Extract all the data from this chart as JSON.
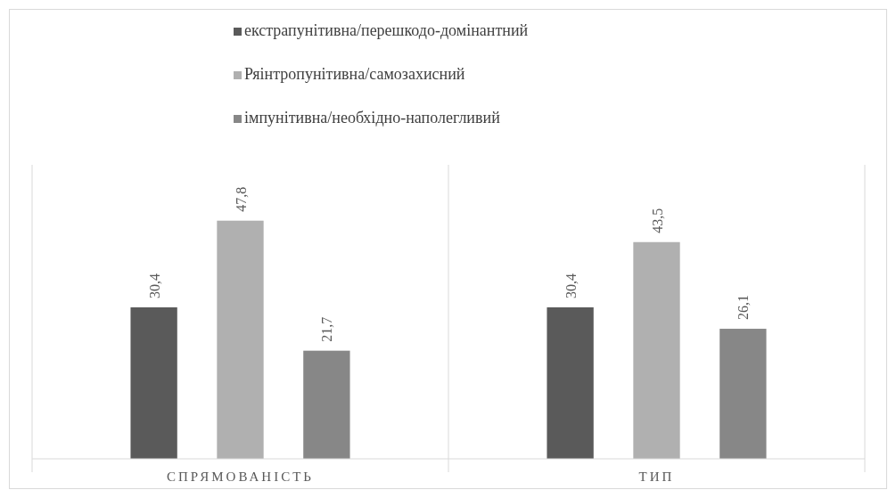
{
  "chart_data": {
    "type": "bar",
    "categories": [
      "СПРЯМОВАНІСТЬ",
      "ТИП"
    ],
    "series": [
      {
        "name": "екстрапунітивна/перешкодо-домінантний",
        "color": "#5a5a5a",
        "values": [
          30.4,
          30.4
        ],
        "value_labels": [
          "30,4",
          "30,4"
        ]
      },
      {
        "name": "Ряінтропунітивна/самозахисний",
        "color": "#b0b0b0",
        "values": [
          47.8,
          43.5
        ],
        "value_labels": [
          "47,8",
          "43,5"
        ]
      },
      {
        "name": "імпунітивна/необхідно-наполегливий",
        "color": "#878787",
        "values": [
          21.7,
          26.1
        ],
        "value_labels": [
          "21,7",
          "26,1"
        ]
      }
    ],
    "legend": "top",
    "grid": false
  }
}
